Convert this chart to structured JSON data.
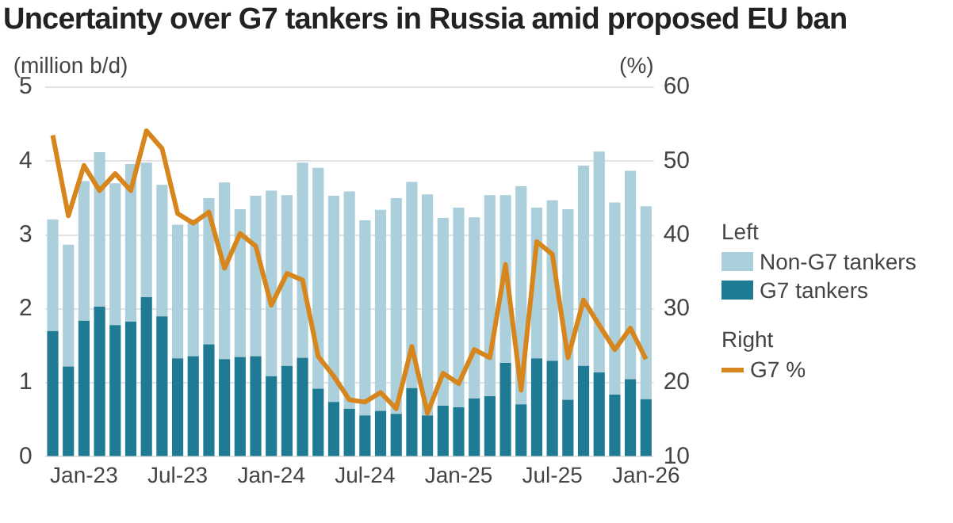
{
  "chart_data": {
    "type": "bar",
    "title": "Uncertainty over G7 tankers in Russia amid proposed EU ban",
    "ylabel": "(million b/d)",
    "y2label": "(%)",
    "categories": [
      null,
      null,
      "Jan-23",
      null,
      null,
      null,
      null,
      null,
      "Jul-23",
      null,
      null,
      null,
      null,
      null,
      "Jan-24",
      null,
      null,
      null,
      null,
      null,
      "Jul-24",
      null,
      null,
      null,
      null,
      null,
      "Jan-25",
      null,
      null,
      null,
      null,
      null,
      "Jul-25",
      null,
      null,
      null,
      null,
      null,
      "Jan-26"
    ],
    "stacked": true,
    "grid": "y",
    "legend": "right",
    "annotations": [
      "Left",
      "Right"
    ],
    "ylim": [
      0,
      5
    ],
    "yticks": [
      0,
      1,
      2,
      3,
      4,
      5
    ],
    "y2lim": [
      10,
      60
    ],
    "y2ticks": [
      10,
      20,
      30,
      40,
      50,
      60
    ],
    "series": [
      {
        "name": "G7 tankers",
        "color": "#1f7a94",
        "values": [
          1.7,
          1.22,
          1.84,
          2.03,
          1.78,
          1.83,
          2.16,
          1.9,
          1.33,
          1.36,
          1.52,
          1.32,
          1.35,
          1.36,
          1.09,
          1.23,
          1.34,
          0.92,
          0.74,
          0.65,
          0.56,
          0.62,
          0.58,
          0.93,
          0.56,
          0.69,
          0.67,
          0.79,
          0.82,
          1.27,
          0.71,
          1.33,
          1.3,
          0.77,
          1.23,
          1.14,
          0.84,
          1.05,
          0.78
        ]
      },
      {
        "name": "Non-G7 tankers",
        "color": "#abcfdb",
        "values": [
          1.51,
          1.65,
          1.89,
          2.09,
          1.92,
          2.13,
          1.82,
          1.78,
          1.81,
          1.85,
          1.98,
          2.39,
          2.0,
          2.17,
          2.51,
          2.31,
          2.64,
          2.99,
          2.79,
          2.94,
          2.64,
          2.72,
          2.92,
          2.79,
          2.99,
          2.54,
          2.7,
          2.45,
          2.72,
          2.27,
          2.95,
          2.04,
          2.17,
          2.58,
          2.71,
          2.99,
          2.6,
          2.82,
          2.61
        ]
      },
      {
        "name": "G7 %",
        "type": "line",
        "axis": "y2",
        "color": "#d7861e",
        "values": [
          53.5,
          42.6,
          49.4,
          46.0,
          48.3,
          46.0,
          54.1,
          51.7,
          42.9,
          41.6,
          43.1,
          35.5,
          40.2,
          38.5,
          30.5,
          34.8,
          33.9,
          23.6,
          20.9,
          17.7,
          17.4,
          18.7,
          16.5,
          24.9,
          15.9,
          21.3,
          19.9,
          24.5,
          23.4,
          36.0,
          19.0,
          39.1,
          37.4,
          23.4,
          31.2,
          27.8,
          24.5,
          27.4,
          23.2
        ]
      }
    ]
  }
}
